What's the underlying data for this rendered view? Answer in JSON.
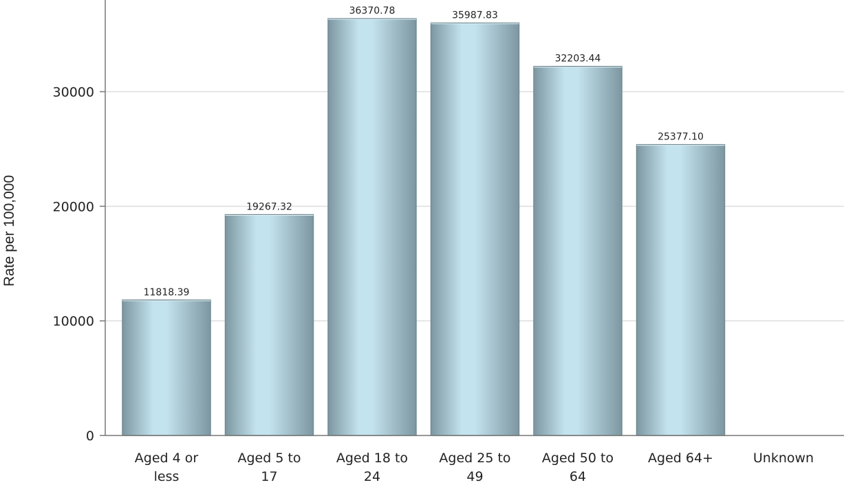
{
  "chart_data": {
    "type": "bar",
    "title": "",
    "xlabel": "",
    "ylabel": "Rate per 100,000",
    "categories": [
      [
        "Aged 4 or",
        "less"
      ],
      [
        "Aged 5 to",
        "17"
      ],
      [
        "Aged 18 to",
        "24"
      ],
      [
        "Aged 25 to",
        "49"
      ],
      [
        "Aged 50 to",
        "64"
      ],
      [
        "Aged 64+"
      ],
      [
        "Unknown"
      ]
    ],
    "values": [
      11818.39,
      19267.32,
      36370.78,
      35987.83,
      32203.44,
      25377.1,
      null
    ],
    "value_labels": [
      "11818.39",
      "19267.32",
      "36370.78",
      "35987.83",
      "32203.44",
      "25377.10",
      ""
    ],
    "yticks": [
      "0",
      "10000",
      "20000",
      "30000"
    ],
    "ylim": [
      0,
      38000
    ],
    "grid": true,
    "legend": "none",
    "colors": {
      "bar_edge": "#6f8a94",
      "bar_center": "#c3e3ee",
      "bar_side": "#7d97a1",
      "grid": "#dddddd",
      "axis": "#777777"
    }
  }
}
